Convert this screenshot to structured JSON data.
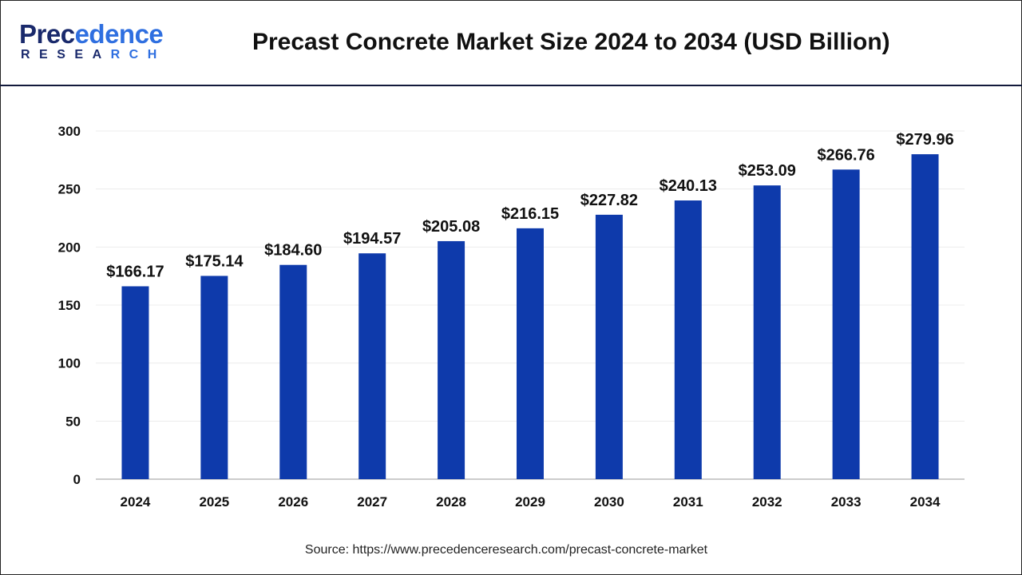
{
  "header": {
    "logo_text_top": "Precedence",
    "logo_text_bottom": "RESEARCH",
    "title": "Precast Concrete Market Size 2024 to 2034 (USD Billion)"
  },
  "source": "Source: https://www.precedenceresearch.com/precast-concrete-market",
  "chart_data": {
    "type": "bar",
    "title": "Precast Concrete Market Size 2024 to 2034 (USD Billion)",
    "categories": [
      "2024",
      "2025",
      "2026",
      "2027",
      "2028",
      "2029",
      "2030",
      "2031",
      "2032",
      "2033",
      "2034"
    ],
    "values": [
      166.17,
      175.14,
      184.6,
      194.57,
      205.08,
      216.15,
      227.82,
      240.13,
      253.09,
      266.76,
      279.96
    ],
    "data_labels": [
      "$166.17",
      "$175.14",
      "$184.60",
      "$194.57",
      "$205.08",
      "$216.15",
      "$227.82",
      "$240.13",
      "$253.09",
      "$266.76",
      "$279.96"
    ],
    "ylim": [
      0,
      300
    ],
    "yticks": [
      0,
      50,
      100,
      150,
      200,
      250,
      300
    ],
    "grid": true,
    "bar_color": "#0e3aab",
    "xlabel": "",
    "ylabel": ""
  }
}
